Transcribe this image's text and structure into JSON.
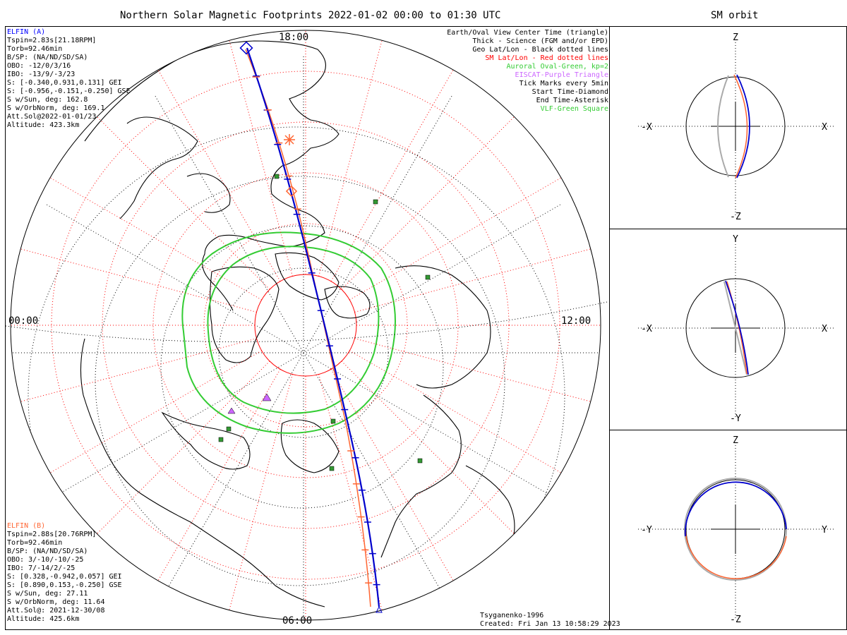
{
  "title": "Northern Solar Magnetic Footprints 2022-01-02 00:00 to 01:30 UTC",
  "orbit_title": "SM orbit",
  "time_labels": {
    "top": "18:00",
    "left": "00:00",
    "right": "12:00",
    "bottom": "06:00"
  },
  "elfin_a": {
    "name": "ELFIN (A)",
    "lines": [
      "Tspin=2.83s[21.18RPM]",
      "Torb=92.46min",
      "B/SP: (NA/ND/SD/SA)",
      "OBO: -12/0/3/16",
      "IBO: -13/9/-3/23",
      "S: [-0.340,0.931,0.131] GEI",
      "S: [-0.956,-0.151,-0.250] GSE",
      "S w/Sun, deg: 162.8",
      "S w/OrbNorm, deg: 169.1",
      "Att.Sol@2022-01-01/23",
      "Altitude: 423.3km"
    ]
  },
  "elfin_b": {
    "name": "ELFIN (B)",
    "lines": [
      "Tspin=2.88s[20.76RPM]",
      "Torb=92.46min",
      "B/SP: (NA/ND/SD/SA)",
      "OBO: 3/-10/-10/-25",
      "IBO: 7/-14/2/-25",
      "S: [0.328,-0.942,0.057] GEI",
      "S: [0.890,0.153,-0.250] GSE",
      "S w/Sun, deg: 27.11",
      "S w/OrbNorm, deg: 11.64",
      "Att.Sol@: 2021-12-30/08",
      "Altitude: 425.6km"
    ]
  },
  "legend": [
    {
      "text": "Earth/Oval View Center Time (triangle)",
      "color": "#000000"
    },
    {
      "text": "Thick - Science (FGM and/or EPD)",
      "color": "#000000"
    },
    {
      "text": "Geo Lat/Lon - Black dotted lines",
      "color": "#000000"
    },
    {
      "text": "SM Lat/Lon - Red dotted lines",
      "color": "#ff0000"
    },
    {
      "text": "Auroral Oval-Green, kp=2",
      "color": "#33cc33"
    },
    {
      "text": "EISCAT-Purple Triangle",
      "color": "#cc66ff"
    },
    {
      "text": "Tick Marks every 5min",
      "color": "#000000"
    },
    {
      "text": "Start Time-Diamond",
      "color": "#000000"
    },
    {
      "text": "End Time-Asterisk",
      "color": "#000000"
    },
    {
      "text": "VLF-Green Square",
      "color": "#33cc33"
    }
  ],
  "footer": {
    "model": "Tsyganenko-1996",
    "created": "Created: Fri Jan 13 10:58:29 2023"
  },
  "orbit_panels": [
    {
      "top": "Z",
      "bottom": "-Z",
      "left": "-X",
      "right": "X"
    },
    {
      "top": "Y",
      "bottom": "-Y",
      "left": "-X",
      "right": "X"
    },
    {
      "top": "Z",
      "bottom": "-Z",
      "left": "-Y",
      "right": "Y"
    }
  ],
  "colors": {
    "elfin_a": "#0000cc",
    "elfin_b": "#ff6633",
    "auroral_oval": "#33cc33",
    "sm_grid": "#ff0000",
    "geo_grid": "#000000",
    "vlf": "#339933",
    "eiscat": "#cc66ff",
    "orbit_ghost": "#aaaaaa"
  },
  "chart_data": {
    "type": "polar-map",
    "title": "Northern Solar Magnetic Footprints 2022-01-02 00:00 to 01:30 UTC",
    "hemisphere": "north",
    "mlt_labels": [
      "18:00",
      "00:00",
      "12:00",
      "06:00"
    ],
    "series": [
      {
        "name": "ELFIN (A)",
        "color": "#0000cc"
      },
      {
        "name": "ELFIN (B)",
        "color": "#ff6633"
      }
    ],
    "auroral_oval_kp": 2,
    "tick_interval_min": 5
  }
}
